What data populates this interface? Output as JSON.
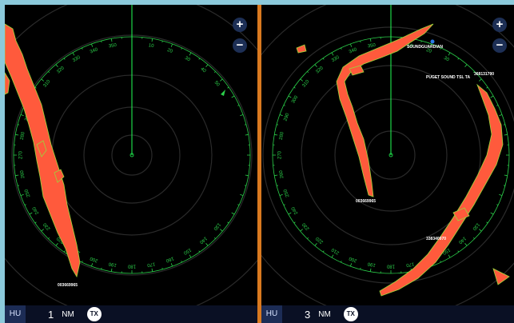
{
  "panes": [
    {
      "mode": "HU",
      "range_value": "1",
      "range_unit": "NM",
      "tx_label": "TX",
      "zoom_in": "+",
      "zoom_out": "−",
      "bearing_labels": [
        "350",
        "10",
        "20",
        "30",
        "40",
        "50",
        "310",
        "320",
        "330",
        "340",
        "300",
        "290",
        "280",
        "270",
        "260",
        "250",
        "240",
        "230",
        "220",
        "210",
        "200",
        "190",
        "180",
        "170",
        "160",
        "150",
        "140",
        "130"
      ],
      "targets": [
        {
          "label": "003669965"
        }
      ]
    },
    {
      "mode": "HU",
      "range_value": "3",
      "range_unit": "NM",
      "tx_label": "TX",
      "zoom_in": "+",
      "zoom_out": "−",
      "bearing_labels": [
        "350",
        "10",
        "20",
        "30",
        "310",
        "320",
        "330",
        "340",
        "300",
        "290",
        "280",
        "270",
        "260",
        "250",
        "240",
        "230",
        "220",
        "210",
        "200",
        "190",
        "180",
        "170",
        "160",
        "150",
        "140",
        "130"
      ],
      "targets": [
        {
          "label": "SOUNDGUARDIAN"
        },
        {
          "label": "PUGET SOUND TSL TA"
        },
        {
          "label": "368131790"
        },
        {
          "label": "003669965"
        },
        {
          "label": "338340970"
        }
      ]
    }
  ],
  "colors": {
    "frame": "#8ccadb",
    "divider": "#d9791f",
    "radar_ring": "#2a2a2a",
    "heading_line": "#22ff55",
    "bearing_ring": "#2bd04a",
    "echo_fill": "#ff5a3c",
    "echo_edge": "#9ad63b"
  }
}
